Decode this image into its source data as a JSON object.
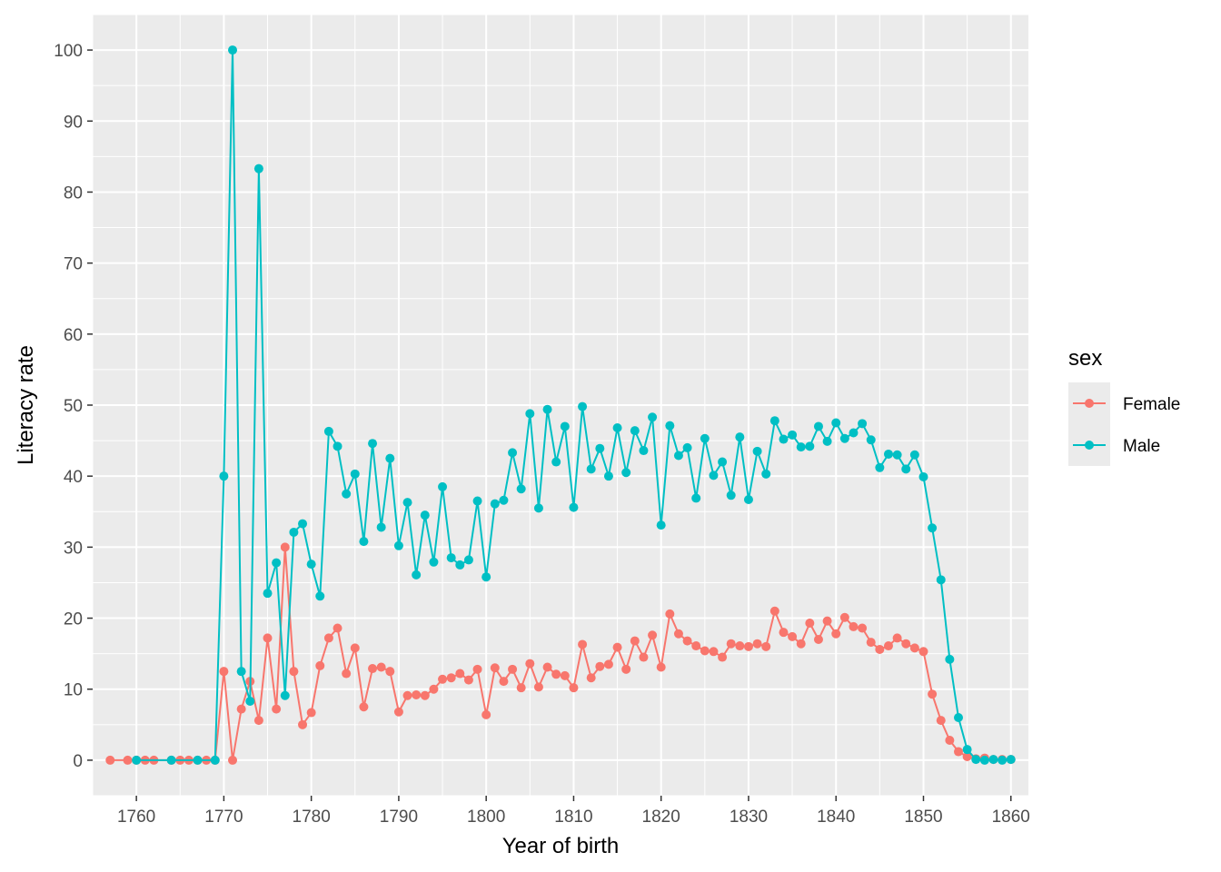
{
  "chart_data": {
    "type": "line",
    "xlabel": "Year of birth",
    "ylabel": "Literacy rate",
    "xlim": [
      1755,
      1862
    ],
    "ylim": [
      -5,
      105
    ],
    "x_ticks": [
      1760,
      1770,
      1780,
      1790,
      1800,
      1810,
      1820,
      1830,
      1840,
      1850,
      1860
    ],
    "x_tick_labels": [
      "1760",
      "1770",
      "1780",
      "1790",
      "1800",
      "1810",
      "1820",
      "1830",
      "1840",
      "1850",
      "1860"
    ],
    "y_ticks": [
      0,
      10,
      20,
      30,
      40,
      50,
      60,
      70,
      80,
      90,
      100
    ],
    "y_tick_labels": [
      "0",
      "10",
      "20",
      "30",
      "40",
      "50",
      "60",
      "70",
      "80",
      "90",
      "100"
    ],
    "grid": true,
    "markers": true,
    "legend": {
      "title": "sex",
      "position": "right"
    },
    "series": [
      {
        "name": "Female",
        "color": "#F8766D",
        "x": [
          1757,
          1759,
          1760,
          1761,
          1762,
          1764,
          1765,
          1766,
          1767,
          1768,
          1769,
          1770,
          1771,
          1772,
          1773,
          1774,
          1775,
          1776,
          1777,
          1778,
          1779,
          1780,
          1781,
          1782,
          1783,
          1784,
          1785,
          1786,
          1787,
          1788,
          1789,
          1790,
          1791,
          1792,
          1793,
          1794,
          1795,
          1796,
          1797,
          1798,
          1799,
          1800,
          1801,
          1802,
          1803,
          1804,
          1805,
          1806,
          1807,
          1808,
          1809,
          1810,
          1811,
          1812,
          1813,
          1814,
          1815,
          1816,
          1817,
          1818,
          1819,
          1820,
          1821,
          1822,
          1823,
          1824,
          1825,
          1826,
          1827,
          1828,
          1829,
          1830,
          1831,
          1832,
          1833,
          1834,
          1835,
          1836,
          1837,
          1838,
          1839,
          1840,
          1841,
          1842,
          1843,
          1844,
          1845,
          1846,
          1847,
          1848,
          1849,
          1850,
          1851,
          1852,
          1853,
          1854,
          1855,
          1856,
          1857,
          1858,
          1859,
          1860
        ],
        "y": [
          0,
          0,
          0,
          0,
          0,
          0,
          0,
          0,
          0,
          0,
          0,
          12.5,
          0,
          7.2,
          11.1,
          5.6,
          17.2,
          7.2,
          30.0,
          12.5,
          5.0,
          6.7,
          13.3,
          17.2,
          18.6,
          12.2,
          15.8,
          7.5,
          12.9,
          13.1,
          12.5,
          6.8,
          9.1,
          9.2,
          9.1,
          10.0,
          11.4,
          11.6,
          12.2,
          11.3,
          12.8,
          6.4,
          13.0,
          11.1,
          12.8,
          10.2,
          13.6,
          10.3,
          13.1,
          12.1,
          11.9,
          10.2,
          16.3,
          11.6,
          13.2,
          13.5,
          15.9,
          12.8,
          16.8,
          14.5,
          17.6,
          13.1,
          20.6,
          17.8,
          16.8,
          16.1,
          15.4,
          15.3,
          14.5,
          16.4,
          16.1,
          16.0,
          16.4,
          16.0,
          21.0,
          18.0,
          17.4,
          16.4,
          19.3,
          17.0,
          19.6,
          17.8,
          20.1,
          18.8,
          18.6,
          16.6,
          15.6,
          16.1,
          17.2,
          16.4,
          15.8,
          15.3,
          9.3,
          5.6,
          2.8,
          1.2,
          0.5,
          0.2,
          0.3,
          0.1,
          0.1,
          0.1
        ]
      },
      {
        "name": "Male",
        "color": "#00BFC4",
        "x": [
          1760,
          1764,
          1767,
          1769,
          1770,
          1771,
          1772,
          1773,
          1774,
          1775,
          1776,
          1777,
          1778,
          1779,
          1780,
          1781,
          1782,
          1783,
          1784,
          1785,
          1786,
          1787,
          1788,
          1789,
          1790,
          1791,
          1792,
          1793,
          1794,
          1795,
          1796,
          1797,
          1798,
          1799,
          1800,
          1801,
          1802,
          1803,
          1804,
          1805,
          1806,
          1807,
          1808,
          1809,
          1810,
          1811,
          1812,
          1813,
          1814,
          1815,
          1816,
          1817,
          1818,
          1819,
          1820,
          1821,
          1822,
          1823,
          1824,
          1825,
          1826,
          1827,
          1828,
          1829,
          1830,
          1831,
          1832,
          1833,
          1834,
          1835,
          1836,
          1837,
          1838,
          1839,
          1840,
          1841,
          1842,
          1843,
          1844,
          1845,
          1846,
          1847,
          1848,
          1849,
          1850,
          1851,
          1852,
          1853,
          1854,
          1855,
          1856,
          1857,
          1858,
          1859,
          1860
        ],
        "y": [
          0,
          0,
          0,
          0,
          40.0,
          100.0,
          12.5,
          8.3,
          83.3,
          23.5,
          27.8,
          9.1,
          32.1,
          33.3,
          27.6,
          23.1,
          46.3,
          44.2,
          37.5,
          40.3,
          30.8,
          44.6,
          32.8,
          42.5,
          30.2,
          36.3,
          26.1,
          34.5,
          27.9,
          38.5,
          28.5,
          27.5,
          28.2,
          36.5,
          25.8,
          36.1,
          36.6,
          43.3,
          38.2,
          48.8,
          35.5,
          49.4,
          42.0,
          47.0,
          35.6,
          49.8,
          41.0,
          43.9,
          40.0,
          46.8,
          40.5,
          46.4,
          43.6,
          48.3,
          33.1,
          47.1,
          42.9,
          44.0,
          36.9,
          45.3,
          40.1,
          42.0,
          37.3,
          45.5,
          36.7,
          43.5,
          40.3,
          47.8,
          45.2,
          45.8,
          44.1,
          44.2,
          47.0,
          44.9,
          47.5,
          45.3,
          46.1,
          47.4,
          45.1,
          41.2,
          43.1,
          43.0,
          41.0,
          43.0,
          39.9,
          32.7,
          25.4,
          14.2,
          6.0,
          1.5,
          0.1,
          0.0,
          0.1,
          0.0,
          0.1
        ]
      }
    ]
  }
}
